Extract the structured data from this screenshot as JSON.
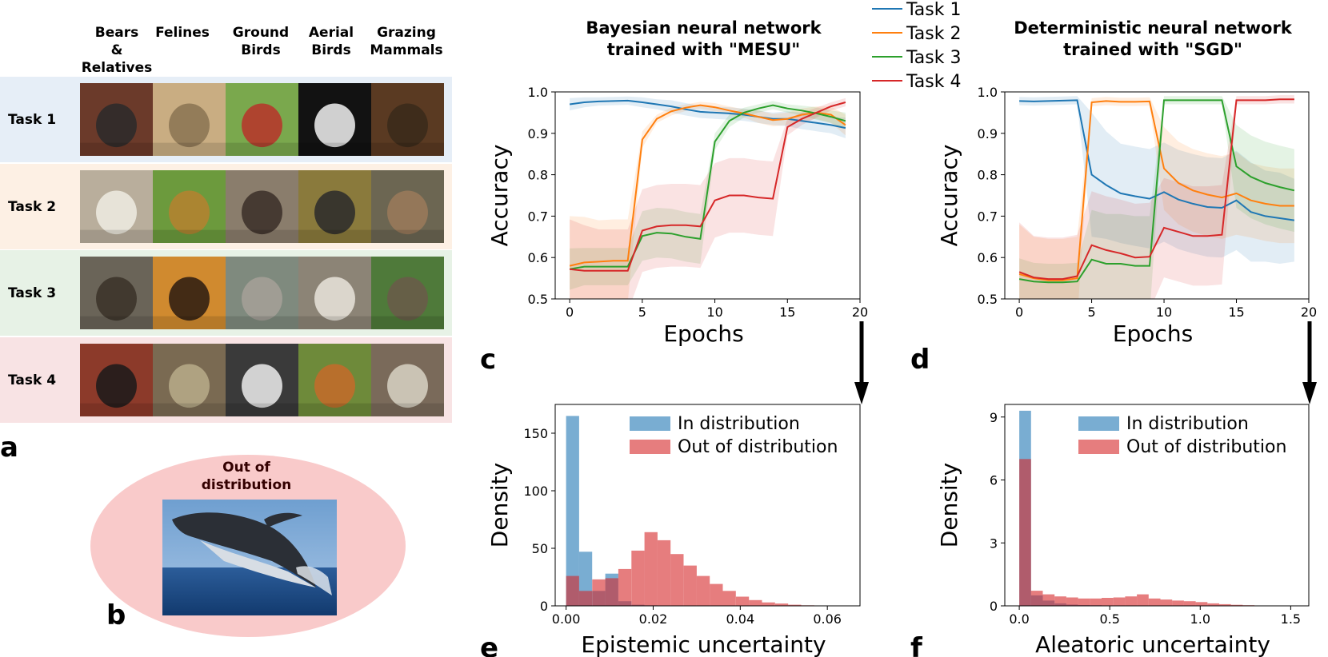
{
  "panel_a": {
    "label": "a",
    "categories": [
      "Bears & Relatives",
      "Felines",
      "Ground Birds",
      "Aerial Birds",
      "Grazing Mammals"
    ],
    "category_lines": [
      [
        "Bears",
        "&",
        "Relatives"
      ],
      [
        "Felines"
      ],
      [
        "Ground",
        "Birds"
      ],
      [
        "Aerial",
        "Birds"
      ],
      [
        "Grazing",
        "Mammals"
      ]
    ],
    "tasks": [
      "Task 1",
      "Task 2",
      "Task 3",
      "Task 4"
    ],
    "row_colors": [
      "#e6eef7",
      "#fdf0e4",
      "#e7f2e6",
      "#f8e3e4"
    ]
  },
  "panel_b": {
    "label": "b",
    "title_lines": [
      "Out of",
      "distribution"
    ],
    "ellipse_color": "#f9caca"
  },
  "legend": {
    "entries": [
      "Task 1",
      "Task 2",
      "Task 3",
      "Task 4"
    ],
    "colors": [
      "#1f77b4",
      "#ff7f0e",
      "#2ca02c",
      "#d62728"
    ]
  },
  "chart_data": [
    {
      "id": "c",
      "label": "c",
      "type": "line",
      "title_lines": [
        "Bayesian neural network",
        "trained with \"MESU\""
      ],
      "xlabel": "Epochs",
      "ylabel": "Accuracy",
      "xlim": [
        -1,
        20
      ],
      "ylim": [
        0.5,
        1.0
      ],
      "xticks": [
        0,
        5,
        10,
        15,
        20
      ],
      "yticks": [
        0.5,
        0.6,
        0.7,
        0.8,
        0.9,
        1.0
      ],
      "x": [
        0,
        1,
        2,
        3,
        4,
        5,
        6,
        7,
        8,
        9,
        10,
        11,
        12,
        13,
        14,
        15,
        16,
        17,
        18,
        19
      ],
      "series": [
        {
          "name": "Task 1",
          "color": "#1f77b4",
          "values": [
            0.97,
            0.975,
            0.977,
            0.978,
            0.979,
            0.975,
            0.97,
            0.965,
            0.958,
            0.952,
            0.95,
            0.948,
            0.945,
            0.94,
            0.935,
            0.935,
            0.93,
            0.925,
            0.92,
            0.913
          ],
          "band": [
            0.015,
            0.012,
            0.01,
            0.01,
            0.01,
            0.012,
            0.012,
            0.015,
            0.015,
            0.015,
            0.015,
            0.015,
            0.015,
            0.015,
            0.015,
            0.018,
            0.02,
            0.02,
            0.02,
            0.025
          ]
        },
        {
          "name": "Task 2",
          "color": "#ff7f0e",
          "values": [
            0.58,
            0.588,
            0.59,
            0.592,
            0.592,
            0.885,
            0.935,
            0.953,
            0.962,
            0.968,
            0.963,
            0.955,
            0.948,
            0.94,
            0.932,
            0.935,
            0.945,
            0.95,
            0.945,
            0.92
          ],
          "band": [
            0.12,
            0.11,
            0.1,
            0.1,
            0.1,
            0.02,
            0.01,
            0.01,
            0.008,
            0.008,
            0.01,
            0.01,
            0.01,
            0.015,
            0.015,
            0.015,
            0.015,
            0.015,
            0.02,
            0.025
          ]
        },
        {
          "name": "Task 3",
          "color": "#2ca02c",
          "values": [
            0.572,
            0.578,
            0.578,
            0.578,
            0.578,
            0.652,
            0.66,
            0.658,
            0.65,
            0.645,
            0.88,
            0.93,
            0.95,
            0.96,
            0.968,
            0.96,
            0.955,
            0.948,
            0.94,
            0.93
          ],
          "band": [
            0.05,
            0.045,
            0.045,
            0.045,
            0.045,
            0.06,
            0.06,
            0.06,
            0.06,
            0.06,
            0.02,
            0.015,
            0.012,
            0.01,
            0.01,
            0.01,
            0.012,
            0.015,
            0.015,
            0.02
          ]
        },
        {
          "name": "Task 4",
          "color": "#d62728",
          "values": [
            0.572,
            0.568,
            0.568,
            0.568,
            0.568,
            0.665,
            0.675,
            0.678,
            0.678,
            0.675,
            0.738,
            0.75,
            0.75,
            0.745,
            0.742,
            0.915,
            0.935,
            0.95,
            0.965,
            0.975
          ],
          "band": [
            0.12,
            0.11,
            0.1,
            0.1,
            0.1,
            0.1,
            0.1,
            0.1,
            0.1,
            0.1,
            0.09,
            0.09,
            0.09,
            0.09,
            0.09,
            0.02,
            0.015,
            0.012,
            0.01,
            0.01
          ]
        }
      ]
    },
    {
      "id": "d",
      "label": "d",
      "type": "line",
      "title_lines": [
        "Deterministic neural network",
        "trained with \"SGD\""
      ],
      "xlabel": "Epochs",
      "ylabel": "Accuracy",
      "xlim": [
        -1,
        20
      ],
      "ylim": [
        0.5,
        1.0
      ],
      "xticks": [
        0,
        5,
        10,
        15,
        20
      ],
      "yticks": [
        0.5,
        0.6,
        0.7,
        0.8,
        0.9,
        1.0
      ],
      "x": [
        0,
        1,
        2,
        3,
        4,
        5,
        6,
        7,
        8,
        9,
        10,
        11,
        12,
        13,
        14,
        15,
        16,
        17,
        18,
        19
      ],
      "series": [
        {
          "name": "Task 1",
          "color": "#1f77b4",
          "values": [
            0.978,
            0.977,
            0.978,
            0.979,
            0.98,
            0.8,
            0.775,
            0.755,
            0.748,
            0.742,
            0.758,
            0.74,
            0.73,
            0.722,
            0.72,
            0.738,
            0.71,
            0.7,
            0.695,
            0.69
          ],
          "band": [
            0.01,
            0.01,
            0.01,
            0.01,
            0.01,
            0.15,
            0.13,
            0.12,
            0.12,
            0.12,
            0.12,
            0.12,
            0.12,
            0.12,
            0.12,
            0.12,
            0.12,
            0.11,
            0.11,
            0.1
          ]
        },
        {
          "name": "Task 2",
          "color": "#ff7f0e",
          "values": [
            0.56,
            0.55,
            0.545,
            0.545,
            0.55,
            0.975,
            0.978,
            0.976,
            0.976,
            0.977,
            0.815,
            0.78,
            0.762,
            0.752,
            0.745,
            0.755,
            0.738,
            0.73,
            0.725,
            0.725
          ],
          "band": [
            0.12,
            0.1,
            0.1,
            0.1,
            0.1,
            0.01,
            0.01,
            0.01,
            0.01,
            0.01,
            0.1,
            0.1,
            0.1,
            0.1,
            0.1,
            0.1,
            0.09,
            0.09,
            0.09,
            0.09
          ]
        },
        {
          "name": "Task 3",
          "color": "#2ca02c",
          "values": [
            0.548,
            0.542,
            0.54,
            0.54,
            0.542,
            0.595,
            0.585,
            0.585,
            0.58,
            0.58,
            0.98,
            0.98,
            0.98,
            0.98,
            0.98,
            0.82,
            0.795,
            0.78,
            0.77,
            0.762
          ],
          "band": [
            0.05,
            0.045,
            0.045,
            0.045,
            0.045,
            0.12,
            0.12,
            0.12,
            0.12,
            0.12,
            0.01,
            0.01,
            0.01,
            0.01,
            0.01,
            0.1,
            0.1,
            0.1,
            0.1,
            0.1
          ]
        },
        {
          "name": "Task 4",
          "color": "#d62728",
          "values": [
            0.565,
            0.552,
            0.548,
            0.548,
            0.555,
            0.63,
            0.618,
            0.61,
            0.6,
            0.602,
            0.672,
            0.662,
            0.652,
            0.652,
            0.655,
            0.98,
            0.98,
            0.98,
            0.982,
            0.982
          ],
          "band": [
            0.12,
            0.1,
            0.1,
            0.1,
            0.1,
            0.13,
            0.13,
            0.13,
            0.13,
            0.13,
            0.12,
            0.12,
            0.12,
            0.12,
            0.12,
            0.01,
            0.01,
            0.01,
            0.01,
            0.01
          ]
        }
      ]
    },
    {
      "id": "e",
      "label": "e",
      "type": "bar",
      "xlabel": "Epistemic uncertainty",
      "ylabel": "Density",
      "xlim": [
        -0.0025,
        0.0675
      ],
      "ylim": [
        0,
        175
      ],
      "xticks": [
        0.0,
        0.02,
        0.04,
        0.06
      ],
      "xticklabels": [
        "0.00",
        "0.02",
        "0.04",
        "0.06"
      ],
      "yticks": [
        0,
        50,
        100,
        150
      ],
      "bin_edges": [
        0.0,
        0.003,
        0.006,
        0.009,
        0.012,
        0.015,
        0.018,
        0.021,
        0.024,
        0.027,
        0.03,
        0.033,
        0.036,
        0.039,
        0.042,
        0.045,
        0.048,
        0.051,
        0.054,
        0.057,
        0.06,
        0.063
      ],
      "series": [
        {
          "name": "In distribution",
          "color": "#1f77b4",
          "opacity": 0.6,
          "values": [
            165,
            47,
            13,
            28,
            4,
            1,
            0.5,
            0,
            0,
            0,
            0,
            0,
            0,
            0,
            0,
            0,
            0,
            0,
            0,
            0,
            0
          ]
        },
        {
          "name": "Out of distribution",
          "color": "#d62728",
          "opacity": 0.6,
          "values": [
            26,
            13,
            23,
            24,
            32,
            48,
            64,
            57,
            45,
            35,
            26,
            19,
            13,
            8,
            5,
            3,
            2,
            1,
            0.5,
            0.3,
            0.2
          ]
        }
      ],
      "legend_position": "top-right"
    },
    {
      "id": "f",
      "label": "f",
      "type": "bar",
      "xlabel": "Aleatoric uncertainty",
      "ylabel": "Density",
      "xlim": [
        -0.08,
        1.6
      ],
      "ylim": [
        0,
        9.6
      ],
      "xticks": [
        0.0,
        0.5,
        1.0,
        1.5
      ],
      "xticklabels": [
        "0.0",
        "0.5",
        "1.0",
        "1.5"
      ],
      "yticks": [
        0,
        3,
        6,
        9
      ],
      "bin_edges": [
        0.0,
        0.065,
        0.13,
        0.195,
        0.26,
        0.325,
        0.39,
        0.455,
        0.52,
        0.585,
        0.65,
        0.715,
        0.78,
        0.845,
        0.91,
        0.975,
        1.04,
        1.105,
        1.17,
        1.235,
        1.3
      ],
      "series": [
        {
          "name": "In distribution",
          "color": "#1f77b4",
          "opacity": 0.6,
          "values": [
            9.3,
            0.5,
            0.25,
            0.12,
            0.06,
            0.04,
            0.03,
            0.02,
            0.02,
            0.01,
            0,
            0,
            0,
            0,
            0,
            0,
            0,
            0,
            0,
            0
          ]
        },
        {
          "name": "Out of distribution",
          "color": "#d62728",
          "opacity": 0.6,
          "values": [
            7.0,
            0.72,
            0.55,
            0.45,
            0.4,
            0.35,
            0.35,
            0.38,
            0.4,
            0.45,
            0.55,
            0.35,
            0.3,
            0.25,
            0.22,
            0.18,
            0.12,
            0.08,
            0.05,
            0.03
          ]
        }
      ],
      "legend_position": "top-right"
    }
  ]
}
